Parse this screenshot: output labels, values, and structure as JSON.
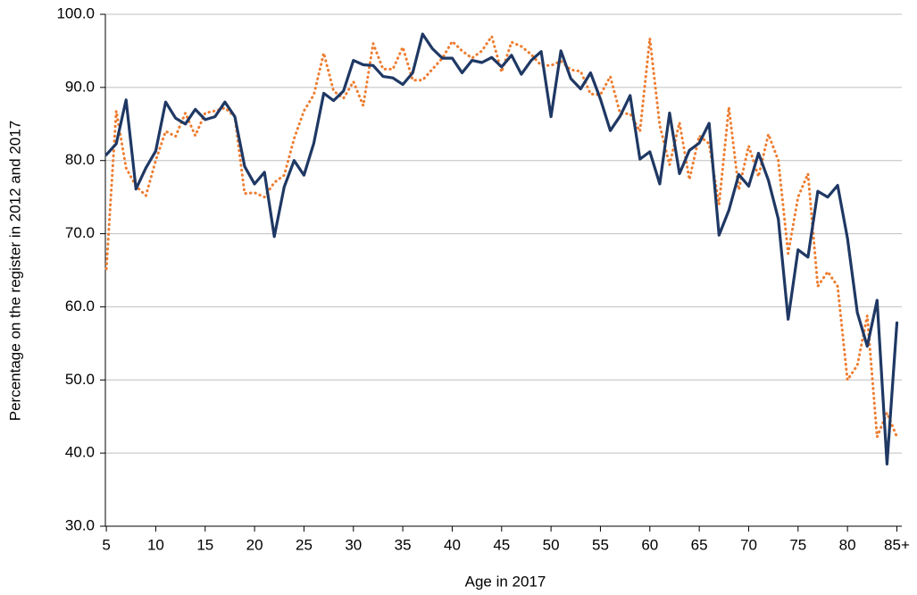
{
  "chart_data": {
    "type": "line",
    "xlabel": "Age in 2017",
    "ylabel": "Percentage on the register in 2012 and 2017",
    "x": [
      5,
      6,
      7,
      8,
      9,
      10,
      11,
      12,
      13,
      14,
      15,
      16,
      17,
      18,
      19,
      20,
      21,
      22,
      23,
      24,
      25,
      26,
      27,
      28,
      29,
      30,
      31,
      32,
      33,
      34,
      35,
      36,
      37,
      38,
      39,
      40,
      41,
      42,
      43,
      44,
      45,
      46,
      47,
      48,
      49,
      50,
      51,
      52,
      53,
      54,
      55,
      56,
      57,
      58,
      59,
      60,
      61,
      62,
      63,
      64,
      65,
      66,
      67,
      68,
      69,
      70,
      71,
      72,
      73,
      74,
      75,
      76,
      77,
      78,
      79,
      80,
      81,
      82,
      83,
      84,
      85
    ],
    "series": [
      {
        "color": "#1f3864",
        "dash": "solid",
        "values": [
          80.8,
          82.3,
          88.3,
          76.1,
          79,
          81.3,
          88,
          85.8,
          85,
          87,
          85.6,
          86,
          88,
          86,
          79.2,
          76.8,
          78.4,
          69.6,
          76.4,
          80,
          78,
          82.4,
          89.2,
          88.2,
          89.5,
          93.7,
          93.1,
          93,
          91.5,
          91.3,
          90.4,
          92,
          97.3,
          95.3,
          94,
          94,
          92,
          93.7,
          93.4,
          94.1,
          92.8,
          94.4,
          91.8,
          93.7,
          94.9,
          86,
          95,
          91.2,
          89.8,
          92,
          88.4,
          84.1,
          86.1,
          88.9,
          80.2,
          81.2,
          76.8,
          86.5,
          78.2,
          81.4,
          82.4,
          85.1,
          69.8,
          73.2,
          78.1,
          76.5,
          81,
          77.3,
          72,
          58.3,
          67.8,
          66.8,
          75.8,
          75,
          76.6,
          69.4,
          59.2,
          54.6,
          60.9,
          38.5,
          57.8
        ]
      },
      {
        "color": "#ed7d31",
        "dash": "dotted",
        "values": [
          65.2,
          86.8,
          79,
          76.5,
          75.2,
          80,
          84,
          83.3,
          86.5,
          83.4,
          86.5,
          86.8,
          87.2,
          86,
          75.5,
          75.6,
          75,
          77,
          78,
          83,
          86.8,
          89,
          94.7,
          89.5,
          88.5,
          90.8,
          87.5,
          96,
          92.5,
          92.5,
          95.5,
          91,
          91,
          92.5,
          94,
          96.3,
          95,
          94,
          95,
          97,
          92.1,
          96.2,
          95.6,
          94.5,
          93,
          93,
          93.6,
          92.4,
          92.2,
          89.1,
          89,
          91.5,
          86.4,
          86.4,
          84,
          96.7,
          84.8,
          79.4,
          85.2,
          77.4,
          83.4,
          82.3,
          74,
          87.3,
          76,
          82,
          77.8,
          83.6,
          80,
          67.3,
          75,
          78.2,
          62.8,
          64.8,
          62.8,
          50,
          52,
          58.8,
          42.2,
          45.5,
          42.2
        ]
      }
    ],
    "xlim": [
      4.9,
      85.5
    ],
    "xticks": [
      5,
      10,
      15,
      20,
      25,
      30,
      35,
      40,
      45,
      50,
      55,
      60,
      65,
      70,
      75,
      80,
      {
        "value": 85,
        "label": "85+"
      }
    ],
    "ylim": [
      30,
      100
    ],
    "yticks": [
      {
        "value": 30,
        "label": "30.0"
      },
      {
        "value": 40,
        "label": "40.0"
      },
      {
        "value": 50,
        "label": "50.0"
      },
      {
        "value": 60,
        "label": "60.0"
      },
      {
        "value": 70,
        "label": "70.0"
      },
      {
        "value": 80,
        "label": "80.0"
      },
      {
        "value": 90,
        "label": "90.0"
      },
      {
        "value": 100,
        "label": "100.0"
      }
    ],
    "grid": true
  }
}
